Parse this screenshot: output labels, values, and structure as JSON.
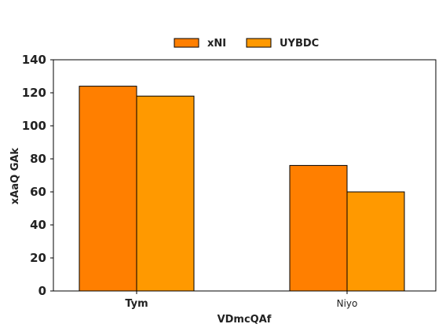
{
  "chart_data": {
    "type": "bar",
    "xlabel": "VDmcQAf",
    "ylabel": "xAaQ GAk",
    "categories": [
      "Tym",
      "Niyo"
    ],
    "category_label_weight": [
      "bold",
      "normal"
    ],
    "series": [
      {
        "name": "xNI",
        "values": [
          124,
          76
        ],
        "color": "#ff7f00"
      },
      {
        "name": "UYBDC",
        "values": [
          118,
          60
        ],
        "color": "#ff9900"
      }
    ],
    "ylim": [
      0,
      140
    ],
    "yticks": [
      0,
      20,
      40,
      60,
      80,
      100,
      120,
      140
    ],
    "grid": false,
    "legend_position": "top-center"
  }
}
